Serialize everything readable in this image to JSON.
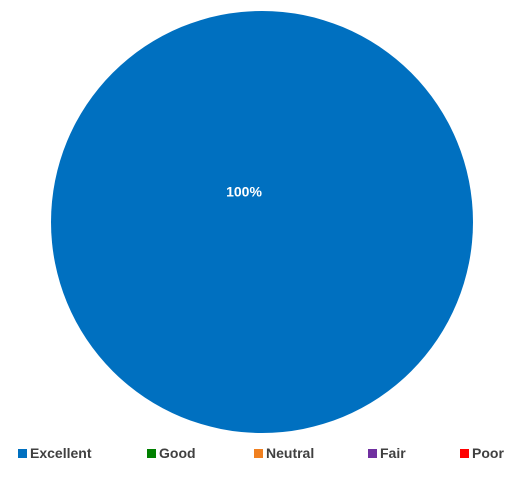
{
  "chart_data": {
    "type": "pie",
    "title": "",
    "slices": [
      {
        "label": "Excellent",
        "value": 100,
        "color": "#0070C0"
      },
      {
        "label": "Good",
        "value": 0,
        "color": "#008000"
      },
      {
        "label": "Neutral",
        "value": 0,
        "color": "#F08020"
      },
      {
        "label": "Fair",
        "value": 0,
        "color": "#7030A0"
      },
      {
        "label": "Poor",
        "value": 0,
        "color": "#FF0000"
      }
    ],
    "data_labels": [
      "100%"
    ],
    "legend_position": "bottom"
  }
}
